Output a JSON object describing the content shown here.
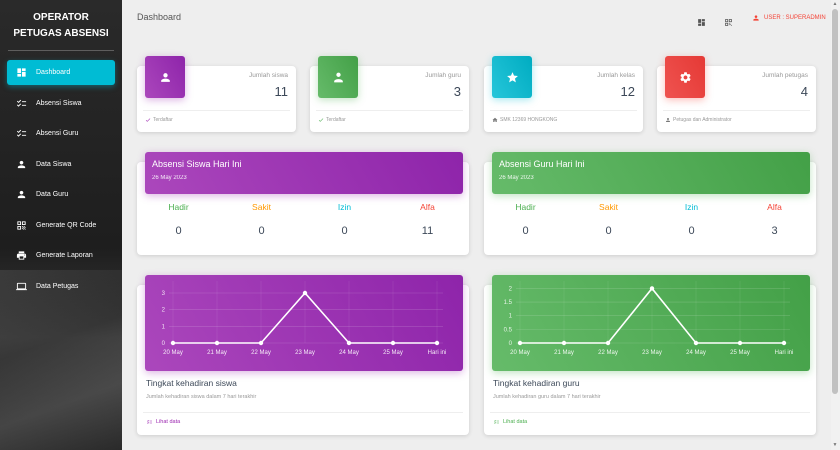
{
  "brand": {
    "line1": "OPERATOR",
    "line2": "PETUGAS ABSENSI"
  },
  "nav": [
    {
      "label": "Dashboard",
      "icon": "dashboard-icon",
      "active": true
    },
    {
      "label": "Absensi Siswa",
      "icon": "checklist-icon"
    },
    {
      "label": "Absensi Guru",
      "icon": "checklist-icon"
    },
    {
      "label": "Data Siswa",
      "icon": "person-icon"
    },
    {
      "label": "Data Guru",
      "icon": "person-icon"
    },
    {
      "label": "Generate QR Code",
      "icon": "qr-code-icon"
    },
    {
      "label": "Generate Laporan",
      "icon": "printer-icon"
    },
    {
      "label": "Data Petugas",
      "icon": "laptop-icon"
    }
  ],
  "header": {
    "title": "Dashboard",
    "user": "USER : SUPERADMIN"
  },
  "stats": [
    {
      "label": "Jumlah siswa",
      "value": "11",
      "footer": "Terdaftar",
      "color": "#9c27b0",
      "icon": "person-icon"
    },
    {
      "label": "Jumlah guru",
      "value": "3",
      "footer": "Terdaftar",
      "color": "#4caf50",
      "icon": "person-badge-icon"
    },
    {
      "label": "Jumlah kelas",
      "value": "12",
      "footer": "SMK 12369 HONGKONG",
      "color": "#00bcd4",
      "icon": "star-icon"
    },
    {
      "label": "Jumlah petugas",
      "value": "4",
      "footer": "Petugas dan Administrator",
      "color": "#f44336",
      "icon": "gear-icon"
    }
  ],
  "attendance": [
    {
      "title": "Absensi Siswa Hari Ini",
      "date": "26 May 2023",
      "items": [
        {
          "label": "Hadir",
          "value": "0",
          "color": "#4caf50"
        },
        {
          "label": "Sakit",
          "value": "0",
          "color": "#ff9800"
        },
        {
          "label": "Izin",
          "value": "0",
          "color": "#00bcd4"
        },
        {
          "label": "Alfa",
          "value": "11",
          "color": "#f44336"
        }
      ]
    },
    {
      "title": "Absensi Guru Hari Ini",
      "date": "26 May 2023",
      "items": [
        {
          "label": "Hadir",
          "value": "0",
          "color": "#4caf50"
        },
        {
          "label": "Sakit",
          "value": "0",
          "color": "#ff9800"
        },
        {
          "label": "Izin",
          "value": "0",
          "color": "#00bcd4"
        },
        {
          "label": "Alfa",
          "value": "3",
          "color": "#f44336"
        }
      ]
    }
  ],
  "chart_data": [
    {
      "type": "line",
      "categories": [
        "20 May",
        "21 May",
        "22 May",
        "23 May",
        "24 May",
        "25 May",
        "Hari ini"
      ],
      "values": [
        0,
        0,
        0,
        3,
        0,
        0,
        0
      ],
      "yticks": [
        "0",
        "1",
        "2",
        "3"
      ],
      "ylim": [
        0,
        3.6
      ],
      "title": "Tingkat kehadiran siswa",
      "subtitle": "Jumlah kehadiran siswa dalam 7 hari terakhir",
      "footer": "Lihat data",
      "color": "#9c27b0"
    },
    {
      "type": "line",
      "categories": [
        "20 May",
        "21 May",
        "22 May",
        "23 May",
        "24 May",
        "25 May",
        "Hari ini"
      ],
      "values": [
        0,
        0,
        0,
        2,
        0,
        0,
        0
      ],
      "yticks": [
        "0",
        "0.5",
        "1",
        "1.5",
        "2"
      ],
      "ylim": [
        0,
        2.2
      ],
      "title": "Tingkat kehadiran guru",
      "subtitle": "Jumlah kehadiran guru dalam 7 hari terakhir",
      "footer": "Lihat data",
      "color": "#4caf50"
    }
  ]
}
